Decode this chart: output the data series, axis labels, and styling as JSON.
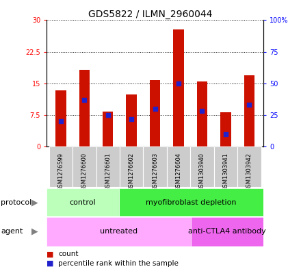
{
  "title": "GDS5822 / ILMN_2960044",
  "samples": [
    "GSM1276599",
    "GSM1276600",
    "GSM1276601",
    "GSM1276602",
    "GSM1276603",
    "GSM1276604",
    "GSM1303940",
    "GSM1303941",
    "GSM1303942"
  ],
  "count_values": [
    13.3,
    18.3,
    8.3,
    12.3,
    15.8,
    27.8,
    15.5,
    8.2,
    17.0
  ],
  "percentile_values": [
    20,
    37,
    25,
    22,
    30,
    50,
    28,
    10,
    33
  ],
  "ylim_left": [
    0,
    30
  ],
  "ylim_right": [
    0,
    100
  ],
  "yticks_left": [
    0,
    7.5,
    15,
    22.5,
    30
  ],
  "yticks_right": [
    0,
    25,
    50,
    75,
    100
  ],
  "yticklabels_left": [
    "0",
    "7.5",
    "15",
    "22.5",
    "30"
  ],
  "yticklabels_right": [
    "0",
    "25",
    "50",
    "75",
    "100%"
  ],
  "bar_color": "#cc1100",
  "dot_color": "#2222cc",
  "background_plot": "#ffffff",
  "protocol_groups": [
    {
      "label": "control",
      "start": 0,
      "end": 3,
      "color": "#bbffbb"
    },
    {
      "label": "myofibroblast depletion",
      "start": 3,
      "end": 9,
      "color": "#44ee44"
    }
  ],
  "agent_groups": [
    {
      "label": "untreated",
      "start": 0,
      "end": 6,
      "color": "#ffaaff"
    },
    {
      "label": "anti-CTLA4 antibody",
      "start": 6,
      "end": 9,
      "color": "#ee66ee"
    }
  ],
  "legend_count_label": "count",
  "legend_percentile_label": "percentile rank within the sample",
  "bar_width": 0.45,
  "title_fontsize": 10,
  "tick_fontsize": 7,
  "label_fontsize": 8
}
